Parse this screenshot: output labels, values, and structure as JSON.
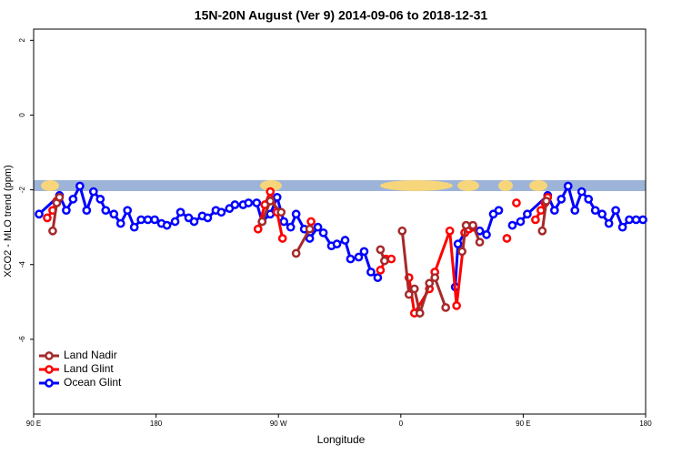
{
  "chart_data": {
    "type": "line",
    "title": "15N-20N August (Ver 9)   2014-09-06 to 2018-12-31",
    "x_label": "Longitude",
    "y_label": "XCO2 - MLO trend (ppm)",
    "xlim": [
      90,
      540
    ],
    "ylim": [
      -8,
      2.3
    ],
    "xticks": [
      {
        "value": 90,
        "label": "90 E"
      },
      180,
      {
        "value": 270,
        "label": "90 W"
      },
      {
        "value": 360,
        "label": "0"
      },
      {
        "value": 450,
        "label": "90 E"
      },
      180
    ],
    "yticks": [
      2,
      0,
      -2,
      -4,
      -6
    ],
    "legend": "bottomleft",
    "series": [
      {
        "name": "Land Nadir",
        "color": "#a52a2a",
        "x": [
          104,
          107,
          109,
          null,
          258,
          264,
          272,
          null,
          283,
          293,
          null,
          345,
          348,
          null,
          361,
          366,
          370,
          374,
          381,
          385,
          393,
          null,
          405,
          408,
          413,
          418,
          null,
          464,
          467
        ],
        "values": [
          -3.1,
          -2.35,
          -2.2,
          null,
          -2.85,
          -2.3,
          -2.6,
          null,
          -3.7,
          -3.05,
          null,
          -3.6,
          -3.9,
          null,
          -3.1,
          -4.8,
          -4.65,
          -5.3,
          -4.5,
          -4.35,
          -5.15,
          null,
          -3.65,
          -2.95,
          -2.95,
          -3.4,
          null,
          -3.1,
          -2.3
        ]
      },
      {
        "name": "Land Glint",
        "color": "#ff0000",
        "x": [
          100,
          104,
          107,
          null,
          255,
          260,
          264,
          269,
          273,
          null,
          294,
          null,
          345,
          349,
          353,
          null,
          366,
          370,
          381,
          385,
          396,
          401,
          407,
          410,
          413,
          null,
          438,
          null,
          445,
          null,
          459,
          463,
          466,
          468
        ],
        "values": [
          -2.75,
          -2.55,
          -2.3,
          null,
          -3.05,
          -2.4,
          -2.05,
          -2.6,
          -3.3,
          null,
          -2.85,
          null,
          -4.15,
          -3.85,
          -3.85,
          null,
          -4.35,
          -5.3,
          -4.65,
          -4.2,
          -3.1,
          -5.1,
          -3.15,
          -3.05,
          -3.0,
          null,
          -3.3,
          null,
          -2.35,
          null,
          -2.8,
          -2.55,
          -2.35,
          -2.2
        ]
      },
      {
        "name": "Ocean Glint",
        "color": "#0000ff",
        "x": [
          94,
          109,
          114,
          119,
          124,
          129,
          134,
          139,
          143,
          149,
          154,
          159,
          164,
          169,
          174,
          179,
          184,
          188,
          194,
          198,
          204,
          208,
          214,
          218,
          224,
          228,
          234,
          238,
          244,
          248,
          254,
          258,
          264,
          269,
          274,
          279,
          283,
          289,
          293,
          299,
          303,
          309,
          313,
          319,
          323,
          329,
          333,
          338,
          343,
          null,
          400,
          402,
          407,
          412,
          418,
          423,
          428,
          432,
          null,
          442,
          448,
          453,
          468,
          473,
          478,
          483,
          488,
          493,
          498,
          503,
          508,
          513,
          518,
          523,
          528,
          533,
          538
        ],
        "values": [
          -2.65,
          -2.15,
          -2.55,
          -2.25,
          -1.9,
          -2.55,
          -2.05,
          -2.25,
          -2.55,
          -2.65,
          -2.9,
          -2.55,
          -3.0,
          -2.8,
          -2.8,
          -2.8,
          -2.9,
          -2.95,
          -2.85,
          -2.6,
          -2.75,
          -2.85,
          -2.7,
          -2.75,
          -2.55,
          -2.6,
          -2.5,
          -2.4,
          -2.4,
          -2.35,
          -2.35,
          -2.85,
          -2.65,
          -2.2,
          -2.85,
          -3.0,
          -2.65,
          -3.05,
          -3.3,
          -3.0,
          -3.15,
          -3.5,
          -3.45,
          -3.35,
          -3.85,
          -3.8,
          -3.65,
          -4.2,
          -4.35,
          null,
          -4.6,
          -3.45,
          -3.15,
          -3.0,
          -3.1,
          -3.2,
          -2.65,
          -2.55,
          null,
          -2.95,
          -2.85,
          -2.65,
          -2.15,
          -2.55,
          -2.25,
          -1.9,
          -2.55,
          -2.05,
          -2.25,
          -2.55,
          -2.65,
          -2.9,
          -2.55,
          -3.0,
          -2.8,
          -2.8,
          -2.8
        ]
      }
    ]
  }
}
